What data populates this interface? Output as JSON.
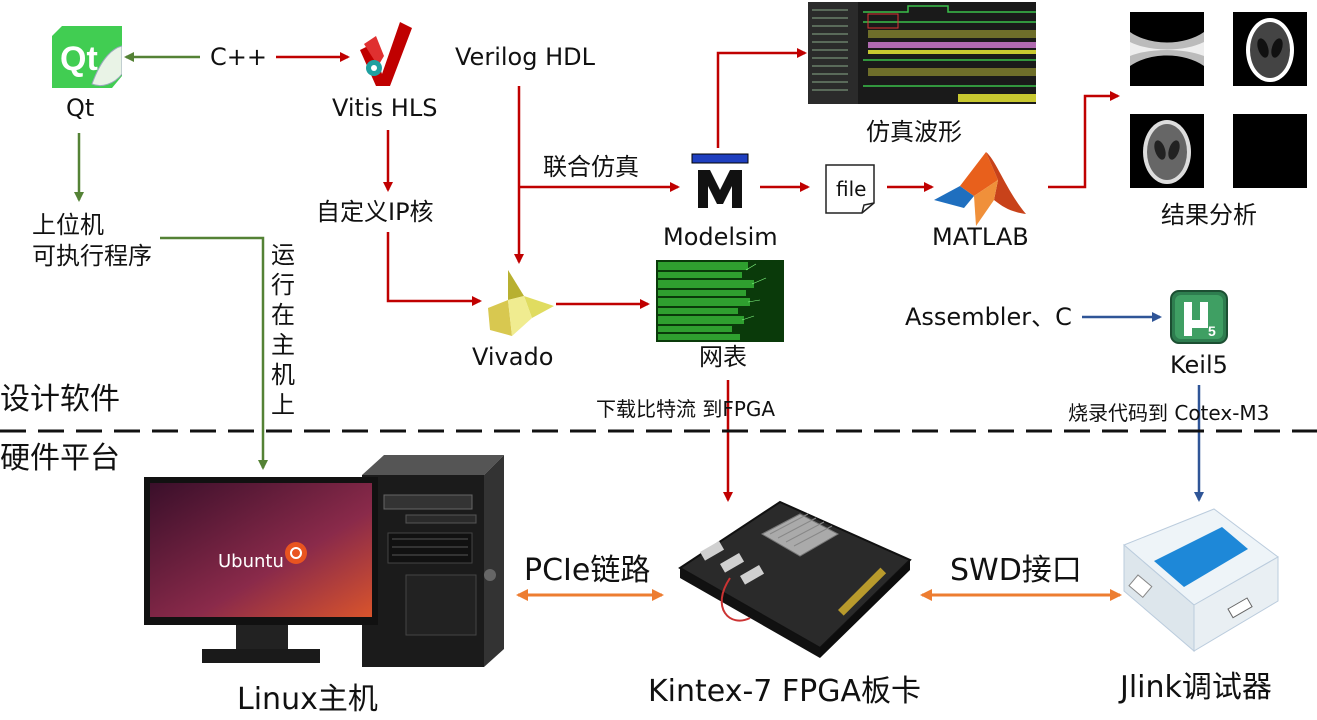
{
  "nodes": {
    "qt": "Qt",
    "vitis": "Vitis HLS",
    "verilog": "Verilog HDL",
    "modelsim": "Modelsim",
    "matlab": "MATLAB",
    "file": "file",
    "sim_wave": "仿真波形",
    "result": "结果分析",
    "host_exe_line1": "上位机",
    "host_exe_line2": "可执行程序",
    "custom_ip": "自定义IP核",
    "vivado": "Vivado",
    "netlist": "网表",
    "asm_c": "Assembler、C",
    "keil": "Keil5",
    "linux_host": "Linux主机",
    "fpga_board": "Kintex-7 FPGA板卡",
    "jlink": "Jlink调试器",
    "ubuntu": "Ubuntu"
  },
  "edges": {
    "cpp": "C++",
    "cosim": "联合仿真",
    "run_on_host": [
      "运",
      "行",
      "在",
      "主",
      "机",
      "上"
    ],
    "download": "下载比特流 到FPGA",
    "burn": "烧录代码到 Cotex-M3",
    "pcie": "PCIe链路",
    "swd": "SWD接口"
  },
  "sections": {
    "design": "设计软件",
    "hardware": "硬件平台"
  },
  "colors": {
    "green_arrow": "#548235",
    "red_arrow": "#c00000",
    "blue_arrow": "#2f5597",
    "orange_arrow": "#ed7d31",
    "qt_green": "#41cd52",
    "matlab_orange": "#e8601c"
  }
}
